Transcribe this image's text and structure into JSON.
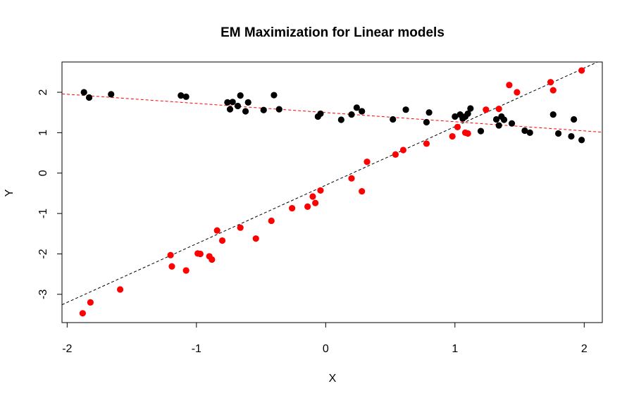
{
  "chart_data": {
    "type": "scatter",
    "title": "EM Maximization for Linear models",
    "xlabel": "X",
    "ylabel": "Y",
    "xlim": [
      -2.04,
      2.14
    ],
    "ylim": [
      -3.7,
      2.75
    ],
    "x_ticks": [
      -2,
      -1,
      0,
      1,
      2
    ],
    "x_tick_labels": [
      "-2",
      "-1",
      "0",
      "1",
      "2"
    ],
    "y_ticks": [
      -3,
      -2,
      -1,
      0,
      1,
      2
    ],
    "y_tick_labels": [
      "-3",
      "-2",
      "-1",
      "0",
      "1",
      "2"
    ],
    "grid": false,
    "series": [
      {
        "color": "#000000",
        "points": [
          [
            -1.87,
            2.0
          ],
          [
            -1.83,
            1.87
          ],
          [
            -1.66,
            1.95
          ],
          [
            -1.12,
            1.92
          ],
          [
            -1.08,
            1.89
          ],
          [
            -0.76,
            1.75
          ],
          [
            -0.74,
            1.58
          ],
          [
            -0.72,
            1.76
          ],
          [
            -0.68,
            1.66
          ],
          [
            -0.66,
            1.92
          ],
          [
            -0.62,
            1.53
          ],
          [
            -0.6,
            1.75
          ],
          [
            -0.48,
            1.56
          ],
          [
            -0.4,
            1.93
          ],
          [
            -0.36,
            1.58
          ],
          [
            -0.06,
            1.4
          ],
          [
            -0.04,
            1.47
          ],
          [
            0.12,
            1.32
          ],
          [
            0.2,
            1.45
          ],
          [
            0.24,
            1.62
          ],
          [
            0.28,
            1.53
          ],
          [
            0.52,
            1.33
          ],
          [
            0.62,
            1.57
          ],
          [
            0.78,
            1.26
          ],
          [
            0.8,
            1.5
          ],
          [
            1.0,
            1.4
          ],
          [
            1.04,
            1.45
          ],
          [
            1.06,
            1.35
          ],
          [
            1.08,
            1.4
          ],
          [
            1.1,
            1.47
          ],
          [
            1.12,
            1.6
          ],
          [
            1.2,
            1.04
          ],
          [
            1.32,
            1.33
          ],
          [
            1.34,
            1.18
          ],
          [
            1.36,
            1.4
          ],
          [
            1.38,
            1.32
          ],
          [
            1.44,
            1.23
          ],
          [
            1.54,
            1.05
          ],
          [
            1.58,
            1.0
          ],
          [
            1.76,
            1.45
          ],
          [
            1.8,
            0.98
          ],
          [
            1.9,
            0.91
          ],
          [
            1.92,
            1.33
          ],
          [
            1.98,
            0.82
          ]
        ]
      },
      {
        "color": "#ff0000",
        "points": [
          [
            -1.88,
            -3.47
          ],
          [
            -1.82,
            -3.2
          ],
          [
            -1.59,
            -2.88
          ],
          [
            -1.2,
            -2.03
          ],
          [
            -1.19,
            -2.31
          ],
          [
            -1.08,
            -2.41
          ],
          [
            -0.99,
            -1.99
          ],
          [
            -0.97,
            -2.0
          ],
          [
            -0.9,
            -2.06
          ],
          [
            -0.88,
            -2.14
          ],
          [
            -0.84,
            -1.42
          ],
          [
            -0.8,
            -1.67
          ],
          [
            -0.66,
            -1.35
          ],
          [
            -0.54,
            -1.62
          ],
          [
            -0.42,
            -1.18
          ],
          [
            -0.26,
            -0.87
          ],
          [
            -0.14,
            -0.83
          ],
          [
            -0.1,
            -0.58
          ],
          [
            -0.08,
            -0.74
          ],
          [
            -0.04,
            -0.43
          ],
          [
            0.2,
            -0.13
          ],
          [
            0.28,
            -0.45
          ],
          [
            0.32,
            0.28
          ],
          [
            0.54,
            0.46
          ],
          [
            0.6,
            0.57
          ],
          [
            0.78,
            0.73
          ],
          [
            0.98,
            0.91
          ],
          [
            1.02,
            1.14
          ],
          [
            1.08,
            1.0
          ],
          [
            1.1,
            0.98
          ],
          [
            1.24,
            1.57
          ],
          [
            1.34,
            1.59
          ],
          [
            1.42,
            2.18
          ],
          [
            1.48,
            2.0
          ],
          [
            1.74,
            2.25
          ],
          [
            1.76,
            2.05
          ],
          [
            1.98,
            2.54
          ]
        ]
      }
    ],
    "fit_lines": [
      {
        "color": "#ff0000",
        "style": "dashed",
        "intercept": 1.498,
        "slope": -0.2267
      },
      {
        "color": "#000000",
        "style": "dashed",
        "intercept": -0.3,
        "slope": 1.45
      }
    ]
  }
}
